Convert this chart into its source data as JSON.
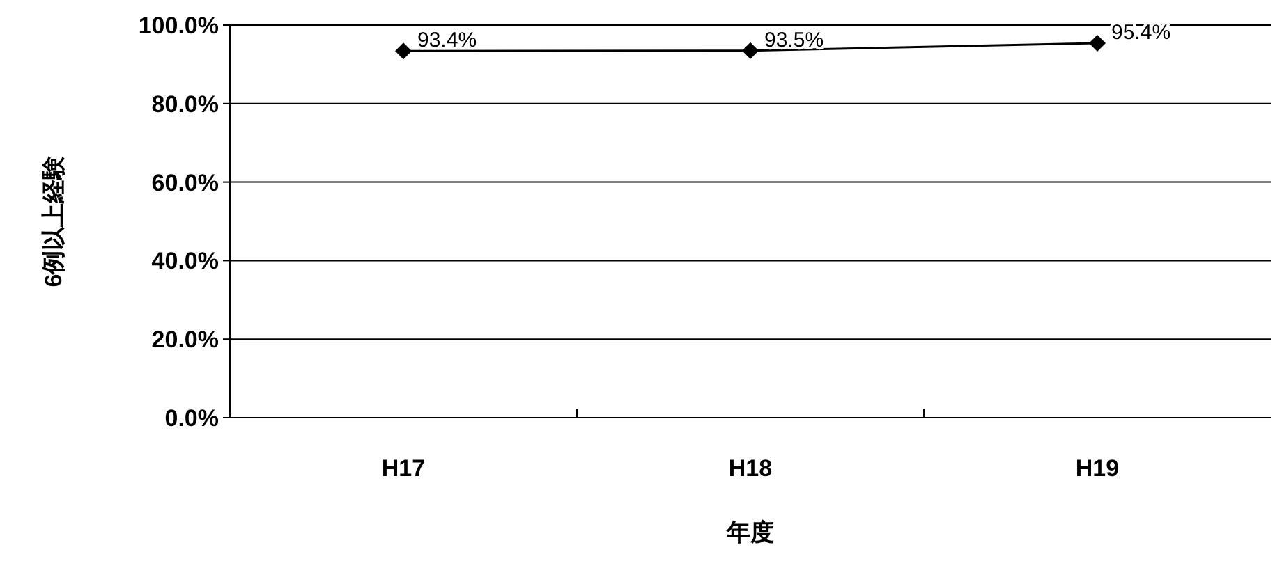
{
  "chart_data": {
    "type": "line",
    "categories": [
      "H17",
      "H18",
      "H19"
    ],
    "series": [
      {
        "color": "#000000",
        "values": [
          93.4,
          93.5,
          95.4
        ],
        "value_labels": [
          "93.4%",
          "93.5%",
          "95.4%"
        ]
      }
    ],
    "xlabel": "年度",
    "ylabel": "6例以上経験",
    "ylim": [
      0,
      100
    ],
    "yticks": [
      {
        "value": 0,
        "label": "0.0%"
      },
      {
        "value": 20,
        "label": "20.0%"
      },
      {
        "value": 40,
        "label": "40.0%"
      },
      {
        "value": 60,
        "label": "60.0%"
      },
      {
        "value": 80,
        "label": "80.0%"
      },
      {
        "value": 100,
        "label": "100.0%"
      }
    ],
    "grid": "y",
    "marker": "diamond",
    "line_style": "solid"
  }
}
